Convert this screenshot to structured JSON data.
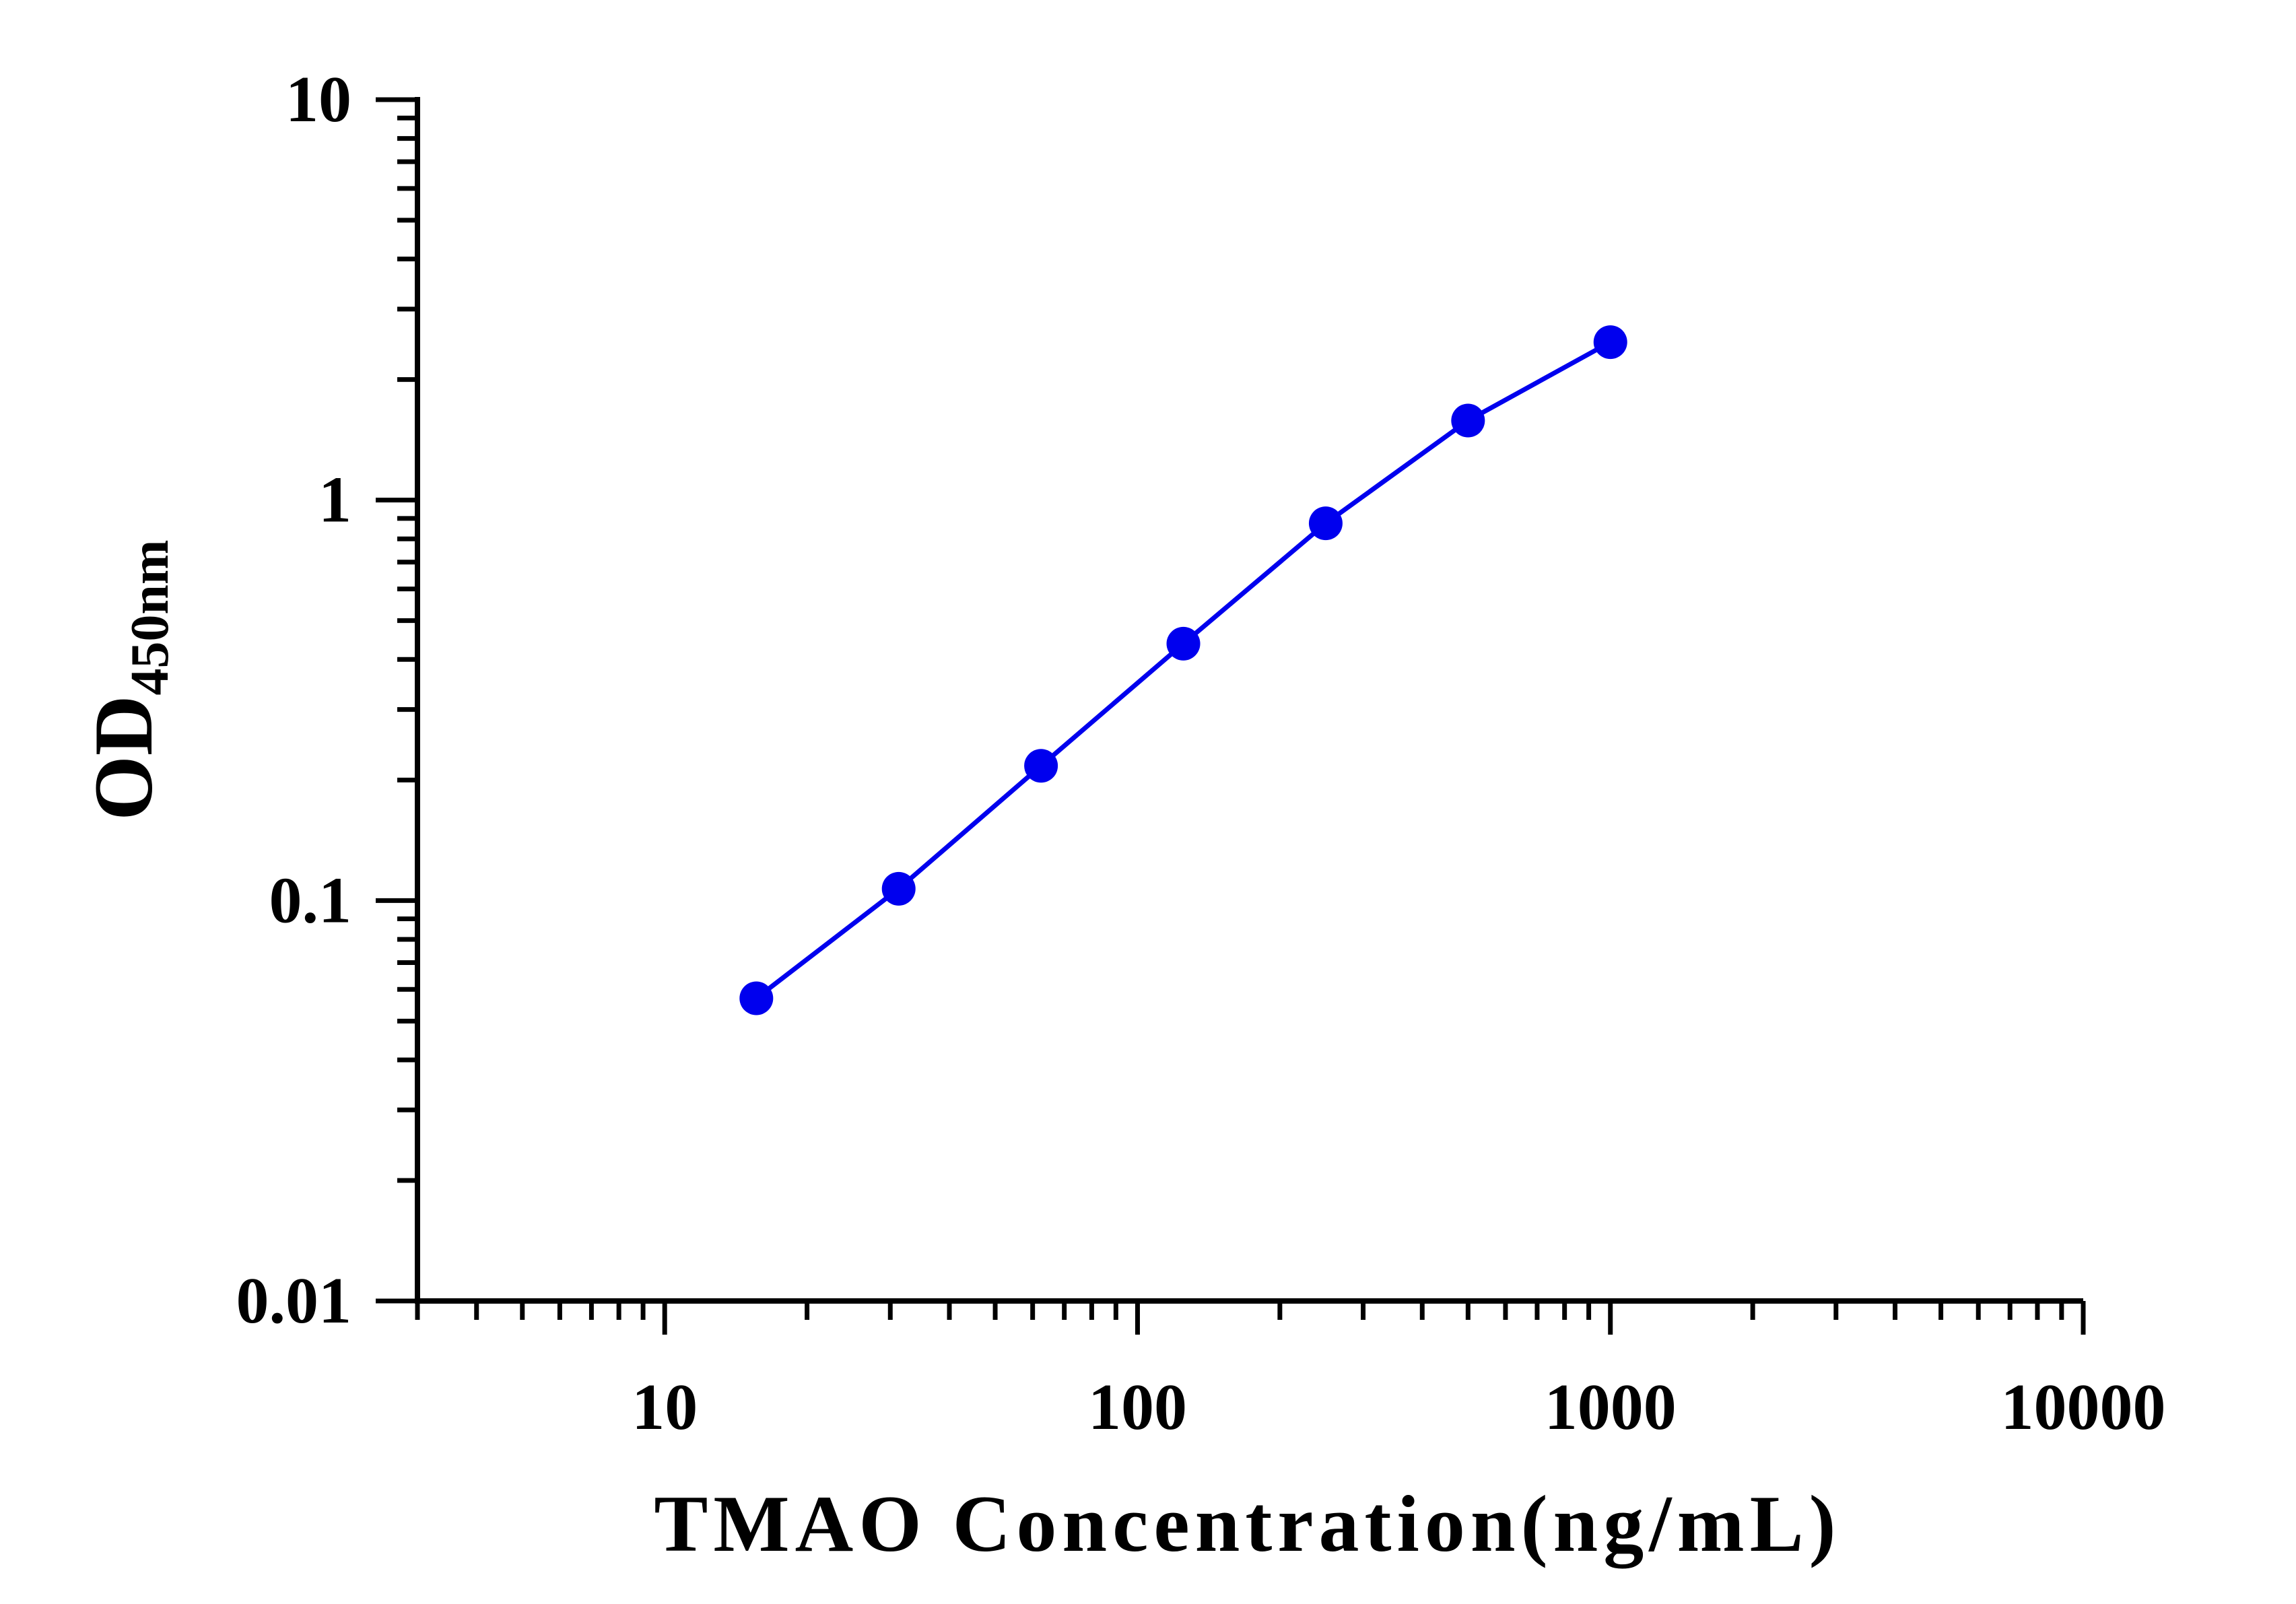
{
  "chart_data": {
    "type": "line",
    "title": "",
    "xlabel": "TMAO Concentration(ng/mL)",
    "ylabel": "OD",
    "ylabel_subscript": "450nm",
    "xscale": "log",
    "yscale": "log",
    "xlim": [
      3,
      10000
    ],
    "ylim": [
      0.01,
      10
    ],
    "x_tick_labels": [
      "10",
      "100",
      "1000",
      "10000"
    ],
    "y_tick_labels": [
      "0.01",
      "0.1",
      "1",
      "10"
    ],
    "grid": false,
    "legend": "none",
    "series": [
      {
        "x": [
          15.625,
          31.25,
          62.5,
          125,
          250,
          500,
          1000
        ],
        "y": [
          0.057,
          0.107,
          0.217,
          0.438,
          0.875,
          1.58,
          2.48
        ],
        "color": "#0000ee",
        "marker": "circle"
      }
    ]
  }
}
